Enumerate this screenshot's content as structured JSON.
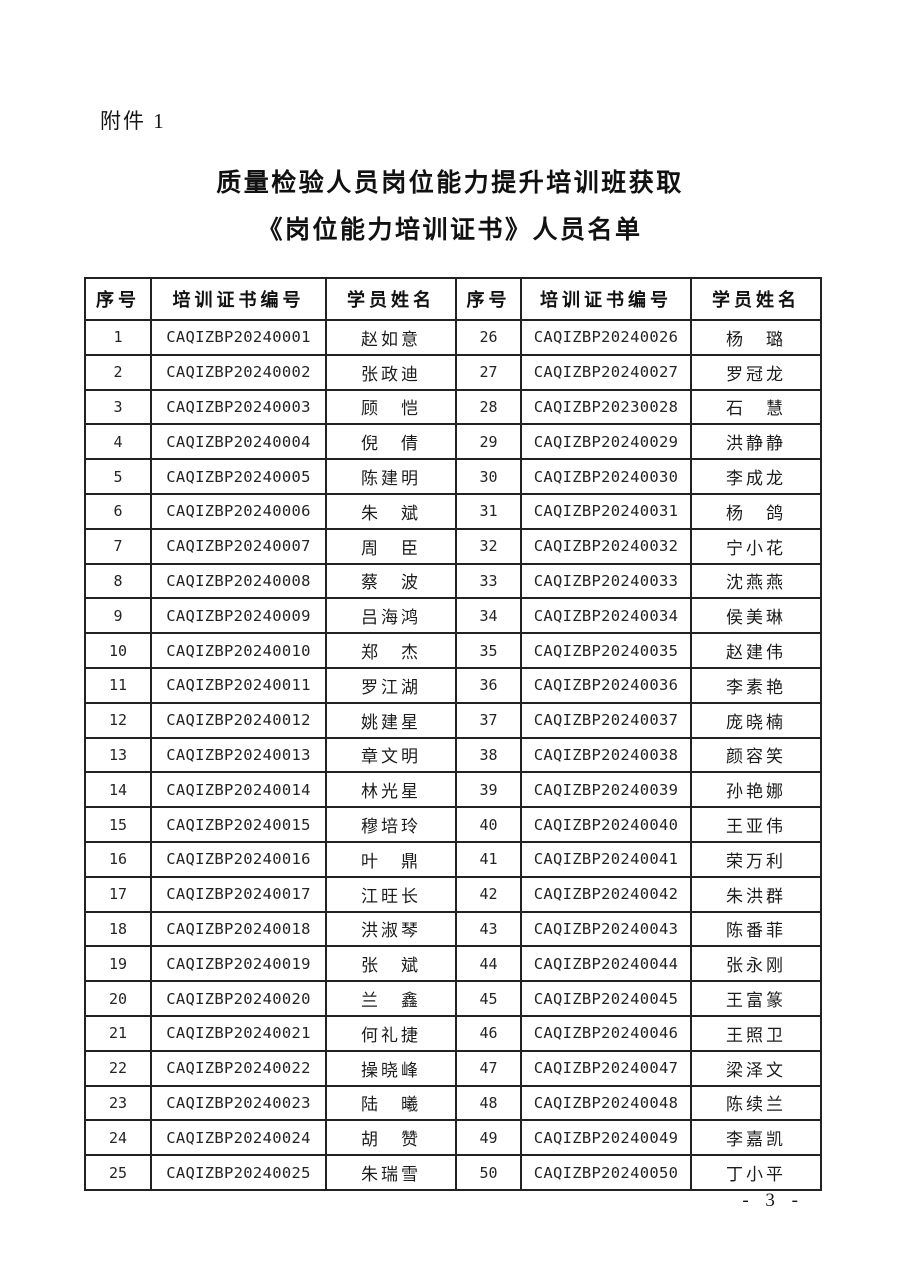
{
  "page": {
    "attachment_label": "附件 1",
    "title_line1": "质量检验人员岗位能力提升培训班获取",
    "title_line2": "《岗位能力培训证书》人员名单",
    "page_number": "- 3 -"
  },
  "table": {
    "headers": [
      "序号",
      "培训证书编号",
      "学员姓名",
      "序号",
      "培训证书编号",
      "学员姓名"
    ],
    "rows": [
      [
        "1",
        "CAQIZBP20240001",
        "赵如意",
        "26",
        "CAQIZBP20240026",
        "杨　璐"
      ],
      [
        "2",
        "CAQIZBP20240002",
        "张政迪",
        "27",
        "CAQIZBP20240027",
        "罗冠龙"
      ],
      [
        "3",
        "CAQIZBP20240003",
        "顾　恺",
        "28",
        "CAQIZBP20230028",
        "石　慧"
      ],
      [
        "4",
        "CAQIZBP20240004",
        "倪　倩",
        "29",
        "CAQIZBP20240029",
        "洪静静"
      ],
      [
        "5",
        "CAQIZBP20240005",
        "陈建明",
        "30",
        "CAQIZBP20240030",
        "李成龙"
      ],
      [
        "6",
        "CAQIZBP20240006",
        "朱　斌",
        "31",
        "CAQIZBP20240031",
        "杨　鸽"
      ],
      [
        "7",
        "CAQIZBP20240007",
        "周　臣",
        "32",
        "CAQIZBP20240032",
        "宁小花"
      ],
      [
        "8",
        "CAQIZBP20240008",
        "蔡　波",
        "33",
        "CAQIZBP20240033",
        "沈燕燕"
      ],
      [
        "9",
        "CAQIZBP20240009",
        "吕海鸿",
        "34",
        "CAQIZBP20240034",
        "侯美琳"
      ],
      [
        "10",
        "CAQIZBP20240010",
        "郑　杰",
        "35",
        "CAQIZBP20240035",
        "赵建伟"
      ],
      [
        "11",
        "CAQIZBP20240011",
        "罗江湖",
        "36",
        "CAQIZBP20240036",
        "李素艳"
      ],
      [
        "12",
        "CAQIZBP20240012",
        "姚建星",
        "37",
        "CAQIZBP20240037",
        "庞晓楠"
      ],
      [
        "13",
        "CAQIZBP20240013",
        "章文明",
        "38",
        "CAQIZBP20240038",
        "颜容笑"
      ],
      [
        "14",
        "CAQIZBP20240014",
        "林光星",
        "39",
        "CAQIZBP20240039",
        "孙艳娜"
      ],
      [
        "15",
        "CAQIZBP20240015",
        "穆培玲",
        "40",
        "CAQIZBP20240040",
        "王亚伟"
      ],
      [
        "16",
        "CAQIZBP20240016",
        "叶　鼎",
        "41",
        "CAQIZBP20240041",
        "荣万利"
      ],
      [
        "17",
        "CAQIZBP20240017",
        "江旺长",
        "42",
        "CAQIZBP20240042",
        "朱洪群"
      ],
      [
        "18",
        "CAQIZBP20240018",
        "洪淑琴",
        "43",
        "CAQIZBP20240043",
        "陈番菲"
      ],
      [
        "19",
        "CAQIZBP20240019",
        "张　斌",
        "44",
        "CAQIZBP20240044",
        "张永刚"
      ],
      [
        "20",
        "CAQIZBP20240020",
        "兰　鑫",
        "45",
        "CAQIZBP20240045",
        "王富篆"
      ],
      [
        "21",
        "CAQIZBP20240021",
        "何礼捷",
        "46",
        "CAQIZBP20240046",
        "王照卫"
      ],
      [
        "22",
        "CAQIZBP20240022",
        "操晓峰",
        "47",
        "CAQIZBP20240047",
        "梁泽文"
      ],
      [
        "23",
        "CAQIZBP20240023",
        "陆　曦",
        "48",
        "CAQIZBP20240048",
        "陈续兰"
      ],
      [
        "24",
        "CAQIZBP20240024",
        "胡　赞",
        "49",
        "CAQIZBP20240049",
        "李嘉凯"
      ],
      [
        "25",
        "CAQIZBP20240025",
        "朱瑞雪",
        "50",
        "CAQIZBP20240050",
        "丁小平"
      ]
    ]
  }
}
